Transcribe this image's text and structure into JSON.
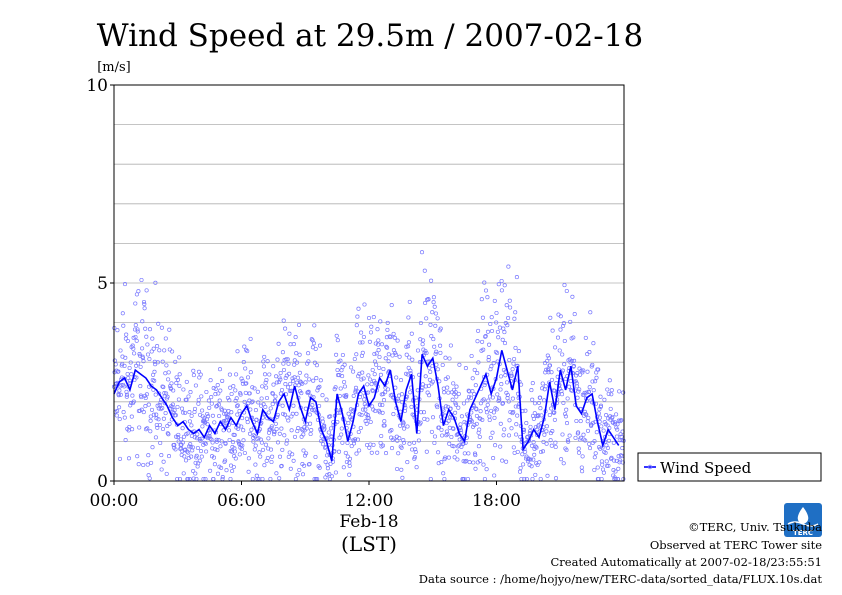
{
  "chart_data": {
    "type": "scatter",
    "title": "Wind Speed at 29.5m / 2007-02-18",
    "ylabel": "[m/s]",
    "xlabel": "(LST)",
    "date_label": "Feb-18",
    "ylim": [
      0,
      10
    ],
    "xlim_hours": [
      0,
      24
    ],
    "y_ticks": [
      {
        "value": 0,
        "label": "0"
      },
      {
        "value": 5,
        "label": "5"
      },
      {
        "value": 10,
        "label": "10"
      }
    ],
    "y_grid_values": [
      1,
      2,
      3,
      4,
      5,
      6,
      7,
      8,
      9
    ],
    "x_ticks": [
      {
        "hour": 0,
        "label": "00:00"
      },
      {
        "hour": 6,
        "label": "06:00"
      },
      {
        "hour": 12,
        "label": "12:00"
      },
      {
        "hour": 18,
        "label": "18:00"
      }
    ],
    "grid": true,
    "legend_position": "right",
    "series": [
      {
        "name": "Wind Speed",
        "color": "#0000ff",
        "scatter_color": "#7777ff",
        "x_hours": [
          0,
          0.25,
          0.5,
          0.75,
          1,
          1.25,
          1.5,
          1.75,
          2,
          2.25,
          2.5,
          2.75,
          3,
          3.25,
          3.5,
          3.75,
          4,
          4.25,
          4.5,
          4.75,
          5,
          5.25,
          5.5,
          5.75,
          6,
          6.25,
          6.5,
          6.75,
          7,
          7.25,
          7.5,
          7.75,
          8,
          8.25,
          8.5,
          8.75,
          9,
          9.25,
          9.5,
          9.75,
          10,
          10.25,
          10.5,
          10.75,
          11,
          11.25,
          11.5,
          11.75,
          12,
          12.25,
          12.5,
          12.75,
          13,
          13.25,
          13.5,
          13.75,
          14,
          14.25,
          14.5,
          14.75,
          15,
          15.25,
          15.5,
          15.75,
          16,
          16.25,
          16.5,
          16.75,
          17,
          17.25,
          17.5,
          17.75,
          18,
          18.25,
          18.5,
          18.75,
          19,
          19.25,
          19.5,
          19.75,
          20,
          20.25,
          20.5,
          20.75,
          21,
          21.25,
          21.5,
          21.75,
          22,
          22.25,
          22.5,
          22.75,
          23,
          23.25,
          23.5,
          23.75
        ],
        "values": [
          2.2,
          2.5,
          2.6,
          2.3,
          2.8,
          2.7,
          2.6,
          2.4,
          2.3,
          2.1,
          1.9,
          1.6,
          1.4,
          1.5,
          1.3,
          1.2,
          1.3,
          1.1,
          1.4,
          1.2,
          1.5,
          1.3,
          1.6,
          1.4,
          1.7,
          1.9,
          1.5,
          1.2,
          1.8,
          1.6,
          1.5,
          2.0,
          2.2,
          1.8,
          2.4,
          1.9,
          1.5,
          2.1,
          2.0,
          1.3,
          1.0,
          0.5,
          2.2,
          1.7,
          1.0,
          1.5,
          2.2,
          2.4,
          1.9,
          2.1,
          2.6,
          2.4,
          2.8,
          2.0,
          1.5,
          2.3,
          2.7,
          1.2,
          3.2,
          2.9,
          3.1,
          2.4,
          1.4,
          1.8,
          1.6,
          1.2,
          1.0,
          1.8,
          2.1,
          2.4,
          2.7,
          2.2,
          2.6,
          3.3,
          2.8,
          2.3,
          2.9,
          0.8,
          1.0,
          1.3,
          1.1,
          1.6,
          2.5,
          1.8,
          2.8,
          2.3,
          2.9,
          1.9,
          1.7,
          2.1,
          2.2,
          1.5,
          0.9,
          1.3,
          1.1,
          0.9
        ]
      }
    ]
  },
  "legend": {
    "label": "Wind Speed"
  },
  "credits": {
    "line1": "©TERC, Univ. Tsukuba",
    "line2": "Observed at TERC Tower site",
    "line3": "Created Automatically at 2007-02-18/23:55:51",
    "line4": "Data source : /home/hojyo/new/TERC-data/sorted_data/FLUX.10s.dat"
  },
  "logo": {
    "text": "TERC",
    "color": "#1f6fc4"
  }
}
